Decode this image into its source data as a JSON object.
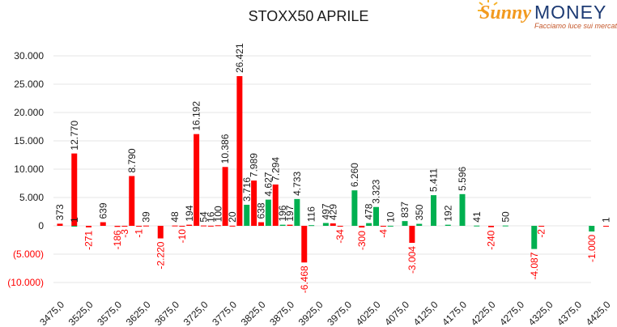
{
  "header": {
    "title": "STOXX50 APRILE"
  },
  "logo": {
    "brand_script": "Sunny",
    "brand_main": "MONEY",
    "tagline": "Facciamo luce sui mercati"
  },
  "colors": {
    "put": "#ff0000",
    "call": "#00b050",
    "negative_label": "#ff0000",
    "label": "#1a1a1a",
    "grid": "#e6e6e6"
  },
  "chart_data": {
    "type": "bar",
    "title": "STOXX50 APRILE",
    "xlabel": "",
    "ylabel": "",
    "ylim": [
      -10000,
      30000
    ],
    "y_ticks": [
      30000,
      25000,
      20000,
      15000,
      10000,
      5000,
      0,
      -5000,
      -10000
    ],
    "y_tick_labels": [
      "30.000",
      "25.000",
      "20.000",
      "15.000",
      "10.000",
      "5.000",
      "0",
      "(5.000)",
      "(10.000)"
    ],
    "x_tick_labels": [
      "3475,0",
      "3525,0",
      "3575,0",
      "3625,0",
      "3675,0",
      "3725,0",
      "3775,0",
      "3825,0",
      "3875,0",
      "3925,0",
      "3975,0",
      "4025,0",
      "4075,0",
      "4125,0",
      "4175,0",
      "4225,0",
      "4275,0",
      "4325,0",
      "4375,0",
      "4425,0"
    ],
    "grid": true,
    "bars": [
      {
        "strike": 3475,
        "series": "put",
        "value": 373,
        "label": "373"
      },
      {
        "strike": 3500,
        "series": "put",
        "value": 12770,
        "label": "12.770"
      },
      {
        "strike": 3500,
        "series": "call",
        "value": 1,
        "label": "1"
      },
      {
        "strike": 3525,
        "series": "put",
        "value": -271,
        "label": "-271"
      },
      {
        "strike": 3550,
        "series": "put",
        "value": 639,
        "label": "639"
      },
      {
        "strike": 3575,
        "series": "put",
        "value": -186,
        "label": "-186"
      },
      {
        "strike": 3587.5,
        "series": "put",
        "value": -3,
        "label": "-3"
      },
      {
        "strike": 3600,
        "series": "put",
        "value": 8790,
        "label": "8.790"
      },
      {
        "strike": 3612.5,
        "series": "put",
        "value": -1,
        "label": "-1"
      },
      {
        "strike": 3625,
        "series": "put",
        "value": 39,
        "label": "39"
      },
      {
        "strike": 3650,
        "series": "put",
        "value": -2220,
        "label": "-2.220"
      },
      {
        "strike": 3675,
        "series": "put",
        "value": 48,
        "label": "48"
      },
      {
        "strike": 3687.5,
        "series": "put",
        "value": -10,
        "label": "-10"
      },
      {
        "strike": 3700,
        "series": "put",
        "value": 194,
        "label": "194"
      },
      {
        "strike": 3712.5,
        "series": "put",
        "value": 16192,
        "label": "16.192"
      },
      {
        "strike": 3725,
        "series": "put",
        "value": 54,
        "label": "54"
      },
      {
        "strike": 3737.5,
        "series": "put",
        "value": 16,
        "label": "16"
      },
      {
        "strike": 3750,
        "series": "put",
        "value": 100,
        "label": "100"
      },
      {
        "strike": 3762.5,
        "series": "put",
        "value": 10386,
        "label": "10.386"
      },
      {
        "strike": 3775,
        "series": "put",
        "value": 20,
        "label": "20"
      },
      {
        "strike": 3787.5,
        "series": "put",
        "value": 26421,
        "label": "26.421"
      },
      {
        "strike": 3800,
        "series": "call",
        "value": 3716,
        "label": "3.716"
      },
      {
        "strike": 3812.5,
        "series": "put",
        "value": 7989,
        "label": "7.989"
      },
      {
        "strike": 3825,
        "series": "put",
        "value": 638,
        "label": "638"
      },
      {
        "strike": 3837.5,
        "series": "call",
        "value": 4627,
        "label": "4.627"
      },
      {
        "strike": 3850,
        "series": "put",
        "value": 7294,
        "label": "7.294"
      },
      {
        "strike": 3862.5,
        "series": "call",
        "value": 196,
        "label": "196"
      },
      {
        "strike": 3875,
        "series": "put",
        "value": 197,
        "label": "197"
      },
      {
        "strike": 3887.5,
        "series": "call",
        "value": 4733,
        "label": "4.733"
      },
      {
        "strike": 3900,
        "series": "put",
        "value": -6468,
        "label": "-6.468"
      },
      {
        "strike": 3912.5,
        "series": "call",
        "value": 116,
        "label": "116"
      },
      {
        "strike": 3937.5,
        "series": "call",
        "value": 497,
        "label": "497"
      },
      {
        "strike": 3950,
        "series": "put",
        "value": 429,
        "label": "429"
      },
      {
        "strike": 3962.5,
        "series": "put",
        "value": -34,
        "label": "-34"
      },
      {
        "strike": 3987.5,
        "series": "call",
        "value": 6260,
        "label": "6.260"
      },
      {
        "strike": 4000,
        "series": "put",
        "value": -300,
        "label": "-300"
      },
      {
        "strike": 4012.5,
        "series": "call",
        "value": 478,
        "label": "478"
      },
      {
        "strike": 4025,
        "series": "call",
        "value": 3323,
        "label": "3.323"
      },
      {
        "strike": 4037.5,
        "series": "put",
        "value": -4,
        "label": "-4"
      },
      {
        "strike": 4050,
        "series": "call",
        "value": 10,
        "label": "10"
      },
      {
        "strike": 4075,
        "series": "call",
        "value": 837,
        "label": "837"
      },
      {
        "strike": 4087.5,
        "series": "put",
        "value": -3004,
        "label": "-3.004"
      },
      {
        "strike": 4100,
        "series": "call",
        "value": 350,
        "label": "350"
      },
      {
        "strike": 4125,
        "series": "call",
        "value": 5411,
        "label": "5.411"
      },
      {
        "strike": 4150,
        "series": "call",
        "value": 192,
        "label": "192"
      },
      {
        "strike": 4175,
        "series": "call",
        "value": 5596,
        "label": "5.596"
      },
      {
        "strike": 4200,
        "series": "call",
        "value": 41,
        "label": "41"
      },
      {
        "strike": 4225,
        "series": "put",
        "value": -240,
        "label": "-240"
      },
      {
        "strike": 4250,
        "series": "call",
        "value": 50,
        "label": "50"
      },
      {
        "strike": 4300,
        "series": "call",
        "value": -4087,
        "label": "-4.087"
      },
      {
        "strike": 4312.5,
        "series": "put",
        "value": -2,
        "label": "-2"
      },
      {
        "strike": 4400,
        "series": "call",
        "value": -1000,
        "label": "-1.000"
      },
      {
        "strike": 4425,
        "series": "put",
        "value": 1,
        "label": "1"
      }
    ]
  }
}
